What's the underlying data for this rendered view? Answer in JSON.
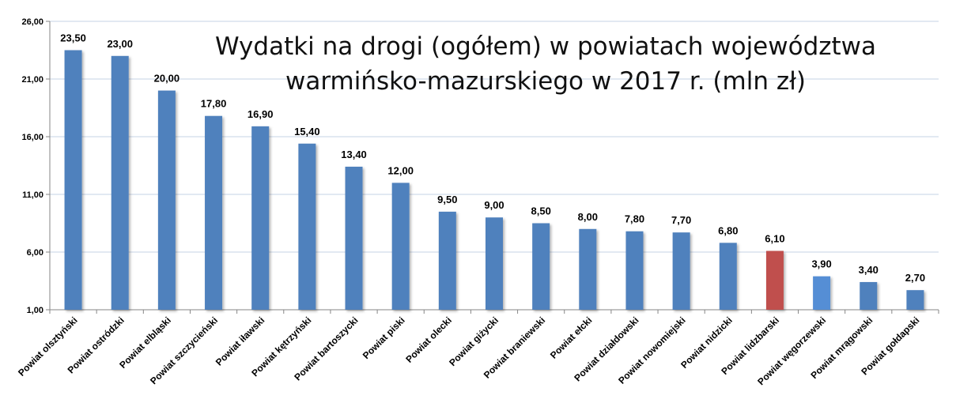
{
  "chart_data": {
    "type": "bar",
    "title_lines": [
      "Wydatki na drogi (ogółem) w powiatach województwa",
      "warmińsko-mazurskiego  w 2017 r. (mln zł)"
    ],
    "xlabel": "",
    "ylabel": "",
    "ylim": [
      1,
      26
    ],
    "yticks": [
      1,
      6,
      11,
      16,
      21,
      26
    ],
    "ytick_labels": [
      "1,00",
      "6,00",
      "11,00",
      "16,00",
      "21,00",
      "26,00"
    ],
    "grid": true,
    "legend": "none",
    "categories": [
      "Powiat olsztyński",
      "Powiat ostródzki",
      "Powiat elbląski",
      "Powiat szczycieński",
      "Powiat iławski",
      "Powiat kętrzyński",
      "Powiat bartoszycki",
      "Powiat piski",
      "Powiat olecki",
      "Powiat giżycki",
      "Powiat braniewski",
      "Powiat ełcki",
      "Powiat działdowski",
      "Powiat nowomiejski",
      "Powiat nidzicki",
      "Powiat lidzbarski",
      "Powiat węgorzewski",
      "Powiat mrągowski",
      "Powiat gołdapski"
    ],
    "values": [
      23.5,
      23.0,
      20.0,
      17.8,
      16.9,
      15.4,
      13.4,
      12.0,
      9.5,
      9.0,
      8.5,
      8.0,
      7.8,
      7.7,
      6.8,
      6.1,
      3.9,
      3.4,
      2.7
    ],
    "value_labels": [
      "23,50",
      "23,00",
      "20,00",
      "17,80",
      "16,90",
      "15,40",
      "13,40",
      "12,00",
      "9,50",
      "9,00",
      "8,50",
      "8,00",
      "7,80",
      "7,70",
      "6,80",
      "6,10",
      "3,90",
      "3,40",
      "2,70"
    ],
    "colors": {
      "default": "#4f81bd",
      "highlight": "#c0504d",
      "secondary": "#558ed5",
      "grid": "#c6d3e6"
    },
    "bar_colors": [
      "default",
      "default",
      "default",
      "default",
      "default",
      "default",
      "default",
      "default",
      "default",
      "default",
      "default",
      "default",
      "default",
      "default",
      "default",
      "highlight",
      "secondary",
      "default",
      "default"
    ]
  }
}
